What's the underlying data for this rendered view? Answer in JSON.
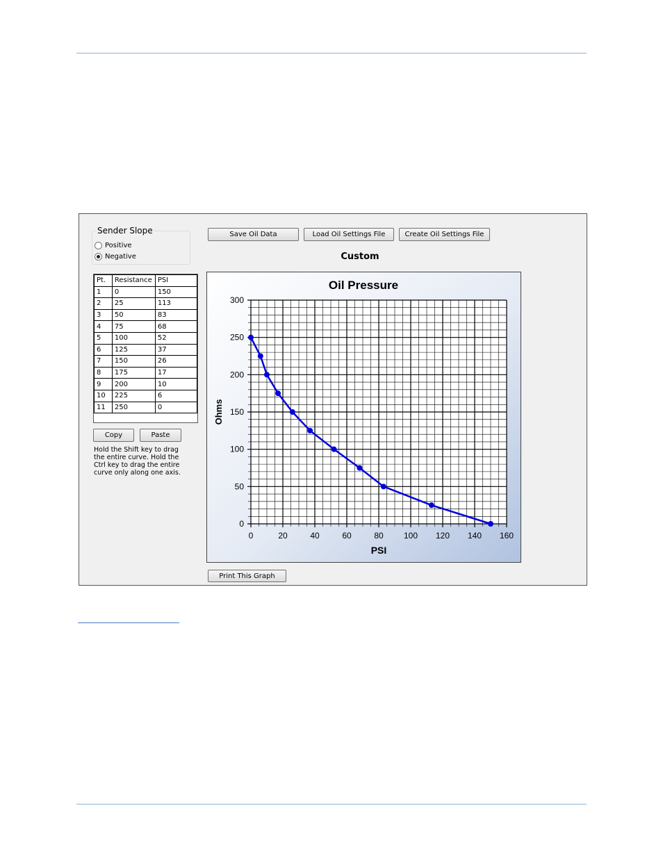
{
  "ui": {
    "sender_slope": {
      "title": "Sender Slope",
      "options": [
        "Positive",
        "Negative"
      ],
      "selected": 1
    },
    "buttons": {
      "save": "Save Oil Data",
      "load": "Load Oil Settings File",
      "create": "Create Oil Settings File",
      "copy": "Copy",
      "paste": "Paste",
      "print": "Print This Graph"
    },
    "mode_label": "Custom",
    "help_text": "Hold the Shift key to drag the entire curve.  Hold the Ctrl key to drag the entire curve only along one axis.",
    "table": {
      "headers": [
        "Pt.",
        "Resistance",
        "PSI"
      ],
      "rows": [
        [
          1,
          0,
          150
        ],
        [
          2,
          25,
          113
        ],
        [
          3,
          50,
          83
        ],
        [
          4,
          75,
          68
        ],
        [
          5,
          100,
          52
        ],
        [
          6,
          125,
          37
        ],
        [
          7,
          150,
          26
        ],
        [
          8,
          175,
          17
        ],
        [
          9,
          200,
          10
        ],
        [
          10,
          225,
          6
        ],
        [
          11,
          250,
          0
        ]
      ]
    }
  },
  "chart_data": {
    "type": "line",
    "title": "Oil Pressure",
    "x_label": "PSI",
    "y_label": "Ohms",
    "x": [
      150,
      113,
      83,
      68,
      52,
      37,
      26,
      17,
      10,
      6,
      0
    ],
    "values": [
      0,
      25,
      50,
      75,
      100,
      125,
      150,
      175,
      200,
      225,
      250
    ],
    "color": "#0000dd",
    "xlim": [
      0,
      160
    ],
    "ylim": [
      0,
      300
    ],
    "xticks": [
      0,
      20,
      40,
      60,
      80,
      100,
      120,
      140,
      160
    ],
    "yticks": [
      0,
      50,
      100,
      150,
      200,
      250,
      300
    ],
    "grid": true
  }
}
